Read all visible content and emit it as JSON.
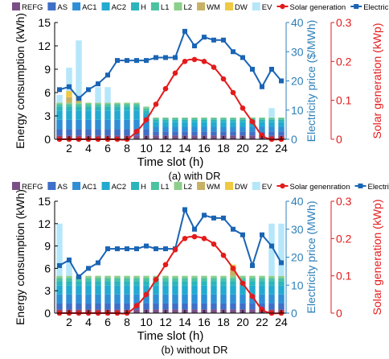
{
  "colors": {
    "REFG": "#7b4f86",
    "AS": "#3f6fc7",
    "AC1": "#2f8fd6",
    "AC2": "#22aad0",
    "H": "#2bb5ba",
    "L1": "#4cc2a0",
    "L2": "#8ccf8a",
    "WM": "#c6b164",
    "DW": "#eec941",
    "EV": "#b6e6fa",
    "solar": "#e41b1b",
    "price": "#1a64b4",
    "price_axis": "#2c7fb8"
  },
  "chart_data": [
    {
      "type": "bar",
      "title": "(a) with DR",
      "xlabel": "Time slot (h)",
      "ylabel": "Energy consumption (kWh)",
      "ylabel2": "Electricity price ($/MWh)",
      "ylabel3": "Solar generation (kWp)",
      "ylim": [
        0,
        15
      ],
      "ylim2": [
        0,
        40
      ],
      "ylim3": [
        0,
        0.3
      ],
      "yticks": [
        "0",
        "3",
        "6",
        "9",
        "12",
        "15"
      ],
      "yticks2": [
        "0",
        "10",
        "20",
        "30",
        "40"
      ],
      "yticks3": [
        "0",
        "0.1",
        "0.2",
        "0.3"
      ],
      "xticks": [
        "2",
        "4",
        "6",
        "8",
        "10",
        "12",
        "14",
        "16",
        "18",
        "20",
        "22",
        "24"
      ],
      "legend": [
        "REFG",
        "AS",
        "AC1",
        "AC2",
        "H",
        "L1",
        "L2",
        "WM",
        "DW",
        "EV",
        "Solar generation",
        "Electricity price"
      ],
      "categories": [
        1,
        2,
        3,
        4,
        5,
        6,
        7,
        8,
        9,
        10,
        11,
        12,
        13,
        14,
        15,
        16,
        17,
        18,
        19,
        20,
        21,
        22,
        23,
        24
      ],
      "series": [
        {
          "name": "REFG",
          "values": [
            0.5,
            0.5,
            0.5,
            0.5,
            0.5,
            0.5,
            0.5,
            0.5,
            0.5,
            0.5,
            0.5,
            0.5,
            0.5,
            0.5,
            0.5,
            0.5,
            0.5,
            0.5,
            0.5,
            0.5,
            0.5,
            0.5,
            0.5,
            0.5
          ]
        },
        {
          "name": "AS",
          "values": [
            0.8,
            0.8,
            0.8,
            0.8,
            0.8,
            0.8,
            0.8,
            0.8,
            0.8,
            0.8,
            0.5,
            0.5,
            0.5,
            0.5,
            0.5,
            0.5,
            0.5,
            0.5,
            0.5,
            0.5,
            0.5,
            0.5,
            0.5,
            0.5
          ]
        },
        {
          "name": "AC1",
          "values": [
            1.2,
            1.2,
            1.2,
            1.2,
            1.2,
            1.2,
            1.2,
            1.2,
            1.2,
            1.0,
            0.6,
            0.6,
            0.6,
            0.6,
            0.6,
            0.6,
            0.6,
            0.6,
            0.6,
            0.6,
            0.6,
            0.6,
            0.6,
            0.6
          ]
        },
        {
          "name": "AC2",
          "values": [
            1.2,
            1.2,
            1.2,
            1.2,
            1.2,
            1.2,
            1.2,
            1.2,
            1.2,
            1.0,
            0.6,
            0.6,
            0.6,
            0.6,
            0.6,
            0.6,
            0.6,
            0.6,
            0.6,
            0.6,
            0.6,
            0.6,
            0.6,
            0.6
          ]
        },
        {
          "name": "H",
          "values": [
            0.5,
            0.5,
            0.5,
            0.5,
            0.5,
            0.5,
            0.5,
            0.5,
            0.5,
            0.4,
            0.3,
            0.3,
            0.3,
            0.3,
            0.3,
            0.3,
            0.3,
            0.3,
            0.3,
            0.3,
            0.3,
            0.3,
            0.3,
            0.3
          ]
        },
        {
          "name": "L1",
          "values": [
            0.3,
            0.3,
            0.3,
            0.3,
            0.3,
            0.3,
            0.3,
            0.3,
            0.3,
            0.3,
            0.2,
            0.2,
            0.2,
            0.2,
            0.2,
            0.2,
            0.2,
            0.2,
            0.2,
            0.2,
            0.2,
            0.2,
            0.2,
            0.2
          ]
        },
        {
          "name": "L2",
          "values": [
            0.2,
            0.2,
            0.2,
            0.2,
            0.2,
            0.2,
            0.2,
            0.2,
            0.2,
            0.2,
            0.1,
            0.1,
            0.1,
            0.1,
            0.1,
            0.1,
            0.1,
            0.1,
            0.1,
            0.1,
            0.1,
            0.1,
            0.1,
            0.1
          ]
        },
        {
          "name": "WM",
          "values": [
            0,
            0.7,
            0.8,
            0,
            0,
            0,
            0,
            0,
            0,
            0,
            0,
            0,
            0,
            0,
            0,
            0,
            0,
            0,
            0,
            0,
            0,
            0,
            0,
            0
          ]
        },
        {
          "name": "DW",
          "values": [
            0,
            0.8,
            0,
            0,
            0,
            0,
            0,
            0,
            0,
            0,
            0,
            0,
            0,
            0,
            0,
            0,
            0,
            0,
            0,
            0,
            0,
            0,
            0,
            0
          ]
        },
        {
          "name": "EV",
          "values": [
            1.0,
            3.0,
            7.2,
            0,
            2.0,
            2.0,
            0,
            0,
            0,
            0,
            0,
            0,
            0,
            0,
            0,
            0,
            0,
            0,
            0,
            0,
            0,
            0,
            1.2,
            0
          ]
        }
      ],
      "price": [
        17,
        18,
        14,
        17,
        19,
        22,
        27,
        27,
        27,
        27,
        28,
        28,
        28,
        37,
        32,
        35,
        34,
        34,
        30,
        28,
        24,
        18,
        24,
        20
      ],
      "solar": [
        0,
        0,
        0,
        0,
        0,
        0,
        0,
        0,
        0.02,
        0.05,
        0.09,
        0.13,
        0.17,
        0.2,
        0.205,
        0.2,
        0.185,
        0.155,
        0.12,
        0.08,
        0.045,
        0.01,
        0,
        0
      ]
    },
    {
      "type": "bar",
      "title": "(b) without DR",
      "xlabel": "Time slot (h)",
      "ylabel": "Energy consumption (kWh)",
      "ylabel2": "Electricity price (MWh)",
      "ylabel3": "Solar generation (kWp)",
      "ylim": [
        0,
        15
      ],
      "ylim2": [
        0,
        40
      ],
      "ylim3": [
        0,
        0.3
      ],
      "yticks": [
        "0",
        "3",
        "6",
        "9",
        "12",
        "15"
      ],
      "yticks2": [
        "0",
        "10",
        "20",
        "30",
        "40"
      ],
      "yticks3": [
        "0",
        "0.1",
        "0.2",
        "0.3"
      ],
      "xticks": [
        "2",
        "4",
        "6",
        "8",
        "10",
        "12",
        "14",
        "16",
        "18",
        "20",
        "22",
        "24"
      ],
      "legend": [
        "REFG",
        "AS",
        "AC1",
        "AC2",
        "H",
        "L1",
        "L2",
        "WM",
        "DW",
        "EV",
        "Solar genenration",
        "Electricity price"
      ],
      "categories": [
        1,
        2,
        3,
        4,
        5,
        6,
        7,
        8,
        9,
        10,
        11,
        12,
        13,
        14,
        15,
        16,
        17,
        18,
        19,
        20,
        21,
        22,
        23,
        24
      ],
      "series": [
        {
          "name": "REFG",
          "values": [
            0.5,
            0.5,
            0.5,
            0.5,
            0.5,
            0.5,
            0.5,
            0.5,
            0.5,
            0.5,
            0.5,
            0.5,
            0.5,
            0.5,
            0.5,
            0.5,
            0.5,
            0.5,
            0.5,
            0.5,
            0.5,
            0.5,
            0.5,
            0.5
          ]
        },
        {
          "name": "AS",
          "values": [
            0.8,
            0.8,
            0.8,
            0.8,
            0.8,
            0.8,
            0.8,
            0.8,
            0.8,
            0.8,
            0.8,
            0.8,
            0.8,
            0.8,
            0.8,
            0.8,
            0.8,
            0.8,
            0.8,
            0.8,
            0.8,
            0.8,
            0.8,
            0.8
          ]
        },
        {
          "name": "AC1",
          "values": [
            1.2,
            1.2,
            1.2,
            1.2,
            1.2,
            1.2,
            1.2,
            1.2,
            1.2,
            1.2,
            1.2,
            1.2,
            1.2,
            1.2,
            1.2,
            1.2,
            1.2,
            1.2,
            1.2,
            1.2,
            1.2,
            1.2,
            1.2,
            1.2
          ]
        },
        {
          "name": "AC2",
          "values": [
            1.2,
            1.2,
            1.2,
            1.2,
            1.2,
            1.2,
            1.2,
            1.2,
            1.2,
            1.2,
            1.2,
            1.2,
            1.2,
            1.2,
            1.2,
            1.2,
            1.2,
            1.2,
            1.2,
            1.2,
            1.2,
            1.2,
            1.2,
            1.2
          ]
        },
        {
          "name": "H",
          "values": [
            0.6,
            0.6,
            0.6,
            0.6,
            0.6,
            0.6,
            0.6,
            0.6,
            0.6,
            0.6,
            0.6,
            0.6,
            0.6,
            0.6,
            0.6,
            0.6,
            0.6,
            0.6,
            0.6,
            0.6,
            0.6,
            0.6,
            0.6,
            0.6
          ]
        },
        {
          "name": "L1",
          "values": [
            0.4,
            0.4,
            0.4,
            0.4,
            0.4,
            0.4,
            0.4,
            0.4,
            0.4,
            0.4,
            0.4,
            0.4,
            0.4,
            0.4,
            0.4,
            0.4,
            0.4,
            0.4,
            0.4,
            0.4,
            0.4,
            0.4,
            0.4,
            0.4
          ]
        },
        {
          "name": "L2",
          "values": [
            0.3,
            0.3,
            0.3,
            0.3,
            0.3,
            0.3,
            0.3,
            0.3,
            0.3,
            0.3,
            0.3,
            0.3,
            0.3,
            0.3,
            0.3,
            0.3,
            0.3,
            0.3,
            0.3,
            0.3,
            0.3,
            0.3,
            0.3,
            0.3
          ]
        },
        {
          "name": "WM",
          "values": [
            0,
            0,
            0,
            0,
            0,
            0,
            0,
            0,
            0,
            0,
            0,
            0,
            0,
            0,
            0,
            0,
            0,
            0,
            0.9,
            0,
            0,
            0,
            0,
            0
          ]
        },
        {
          "name": "DW",
          "values": [
            0,
            0,
            0,
            0,
            0,
            0,
            0,
            0,
            0,
            0,
            0,
            0,
            0,
            0,
            0,
            0,
            0,
            0,
            0.6,
            0,
            0,
            0,
            0,
            0
          ]
        },
        {
          "name": "EV",
          "values": [
            7.0,
            1.8,
            0,
            0,
            0,
            0,
            0,
            0,
            0,
            0,
            0,
            0,
            0,
            0,
            0,
            0,
            0,
            0,
            0,
            0,
            0,
            0,
            7.0,
            7.0
          ]
        }
      ],
      "price": [
        17,
        19,
        13,
        16,
        18,
        23,
        23,
        23,
        23,
        24,
        23,
        23,
        23,
        37,
        30,
        35,
        34,
        34,
        30,
        28,
        17,
        28,
        24,
        18
      ],
      "solar": [
        0,
        0,
        0,
        0,
        0,
        0,
        0,
        0,
        0.02,
        0.05,
        0.09,
        0.13,
        0.17,
        0.2,
        0.205,
        0.2,
        0.185,
        0.155,
        0.12,
        0.08,
        0.045,
        0.01,
        0,
        0
      ]
    }
  ]
}
